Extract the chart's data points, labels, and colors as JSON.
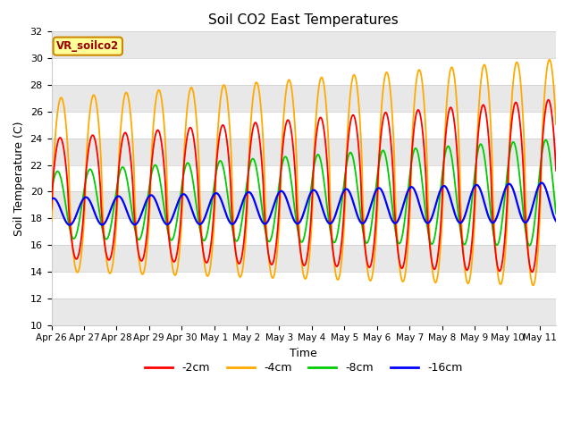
{
  "title": "Soil CO2 East Temperatures",
  "xlabel": "Time",
  "ylabel": "Soil Temperature (C)",
  "ylim": [
    10,
    32
  ],
  "vr_label": "VR_soilco2",
  "legend_labels": [
    "-2cm",
    "-4cm",
    "-8cm",
    "-16cm"
  ],
  "colors": [
    "#ff0000",
    "#ffaa00",
    "#00cc00",
    "#0000ff"
  ],
  "x_tick_labels": [
    "Apr 26",
    "Apr 27",
    "Apr 28",
    "Apr 29",
    "Apr 30",
    "May 1",
    "May 2",
    "May 3",
    "May 4",
    "May 5",
    "May 6",
    "May 7",
    "May 8",
    "May 9",
    "May 10",
    "May 11"
  ],
  "background_color": "#ffffff",
  "band_colors": [
    "#ffffff",
    "#e8e8e8"
  ],
  "days": 15.5,
  "points_per_day": 144,
  "base_temp": 18.5,
  "base_rise": 0.06
}
